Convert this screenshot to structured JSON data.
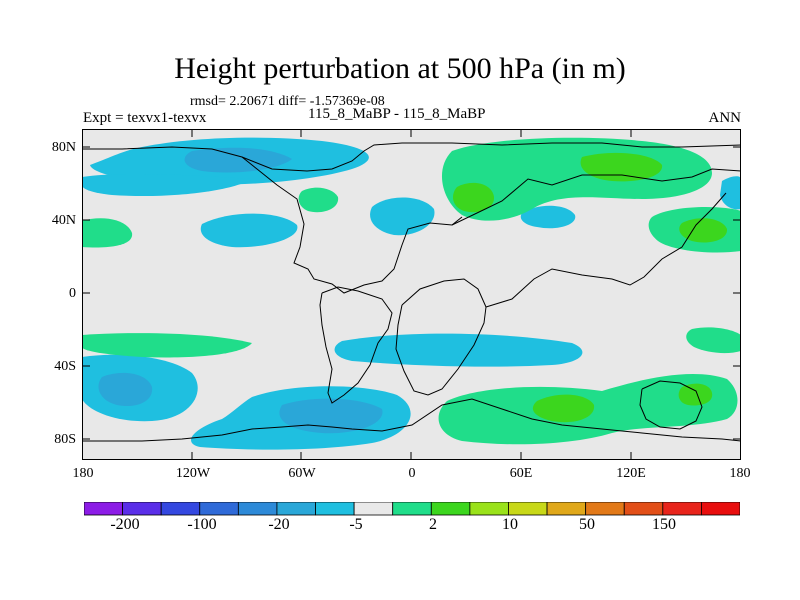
{
  "title": "Height perturbation at 500 hPa (in m)",
  "stats": {
    "rmsd": "rmsd= 2.20671",
    "diff": "diff= -1.57369e-08"
  },
  "experiment": "Expt = texvx1-texvx",
  "case": "115_8_MaBP - 115_8_MaBP",
  "season": "ANN",
  "lat_labels": [
    "80N",
    "40N",
    "0",
    "40S",
    "80S"
  ],
  "lon_labels": [
    "180",
    "120W",
    "60W",
    "0",
    "60E",
    "120E",
    "180"
  ],
  "colorbar": {
    "colors": [
      "#8c1ce6",
      "#5a2ee8",
      "#3448e0",
      "#2f6ad8",
      "#2d8ad8",
      "#2aa7d8",
      "#1fbfe0",
      "#e9e9e9",
      "#20dd8a",
      "#3cd61e",
      "#9ae21a",
      "#c8d818",
      "#e0a81a",
      "#e27918",
      "#e24f18",
      "#e8241b",
      "#e80e0e"
    ],
    "labels": [
      "-200",
      "-100",
      "-20",
      "-5",
      "2",
      "10",
      "50",
      "150"
    ]
  },
  "field_colors": {
    "background": "#e8e8e8",
    "neg_light": "#1fbfe0",
    "neg_mid": "#2aa7d8",
    "pos_light": "#20dd8a",
    "pos_mid": "#3cd61e"
  }
}
